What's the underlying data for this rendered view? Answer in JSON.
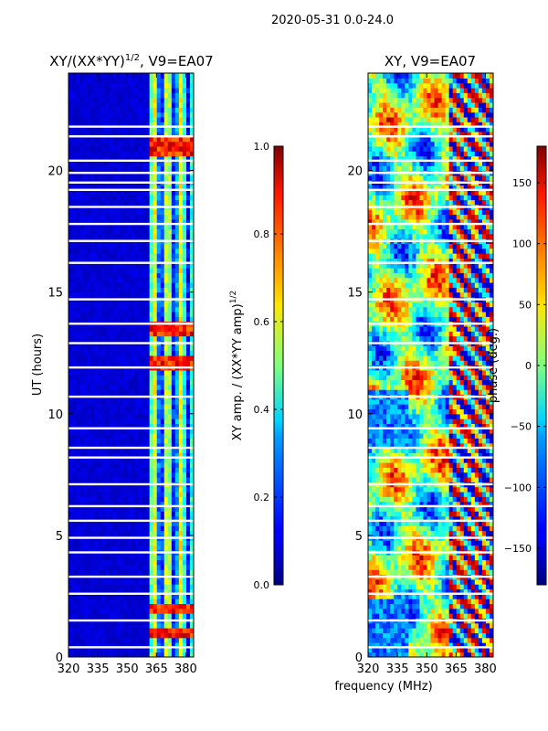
{
  "suptitle": "2020-05-31 0.0-24.0",
  "xlabel_shared": "frequency (MHz)",
  "chart_data": [
    {
      "type": "heatmap",
      "title_text": "XY/(XX*YY)",
      "title_exp": "1/2",
      "title_suffix": ", V9=EA07",
      "xlabel": "",
      "ylabel": "UT (hours)",
      "xlim": [
        320,
        384
      ],
      "ylim": [
        0,
        24
      ],
      "xticks": [
        320,
        335,
        350,
        365,
        380
      ],
      "yticks": [
        0,
        5,
        10,
        15,
        20
      ],
      "colormap": "jet",
      "colorbar": {
        "label_text": "XY amp. / (XX*YY amp)",
        "label_exp": "1/2",
        "range": [
          0.0,
          1.0
        ],
        "ticks": [
          "0.0",
          "0.2",
          "0.4",
          "0.6",
          "0.8",
          "1.0"
        ],
        "tick_values": [
          0.0,
          0.2,
          0.4,
          0.6,
          0.8,
          1.0
        ]
      },
      "description_bands": [
        {
          "freq_range": [
            320,
            362
          ],
          "value": 0.08
        },
        {
          "freq_range": [
            362,
            384
          ],
          "value": 0.45
        }
      ],
      "bright_rows_hours": [
        12.1,
        13.5,
        20.8,
        21.2,
        2.0,
        1.0
      ],
      "gap_rows_hours": [
        0.4,
        1.5,
        2.6,
        3.3,
        4.3,
        4.9,
        5.6,
        6.2,
        7.1,
        8.2,
        8.6,
        9.4,
        10.7,
        11.9,
        12.9,
        13.7,
        14.7,
        16.2,
        17.1,
        17.8,
        18.5,
        19.2,
        19.5,
        19.9,
        20.4,
        21.4,
        21.8
      ]
    },
    {
      "type": "heatmap",
      "title_text": "XY, V9=EA07",
      "xlabel": "frequency (MHz)",
      "ylabel": "",
      "xlim": [
        320,
        384
      ],
      "ylim": [
        0,
        24
      ],
      "xticks": [
        320,
        335,
        350,
        365,
        380
      ],
      "yticks": [
        0,
        5,
        10,
        15,
        20
      ],
      "colormap": "jet",
      "colorbar": {
        "label_text": "phase (deg.)",
        "range": [
          -180,
          180
        ],
        "ticks": [
          "−150",
          "−100",
          "−50",
          "0",
          "50",
          "100",
          "150"
        ],
        "tick_values": [
          -150,
          -100,
          -50,
          0,
          50,
          100,
          150
        ]
      },
      "gap_rows_hours": [
        0.4,
        1.5,
        2.6,
        3.3,
        4.3,
        4.9,
        5.6,
        6.2,
        7.1,
        8.2,
        8.6,
        9.4,
        10.7,
        11.9,
        12.9,
        13.7,
        14.7,
        16.2,
        17.1,
        17.8,
        18.5,
        19.2,
        19.5,
        19.9,
        20.4,
        21.4,
        21.8
      ]
    }
  ]
}
